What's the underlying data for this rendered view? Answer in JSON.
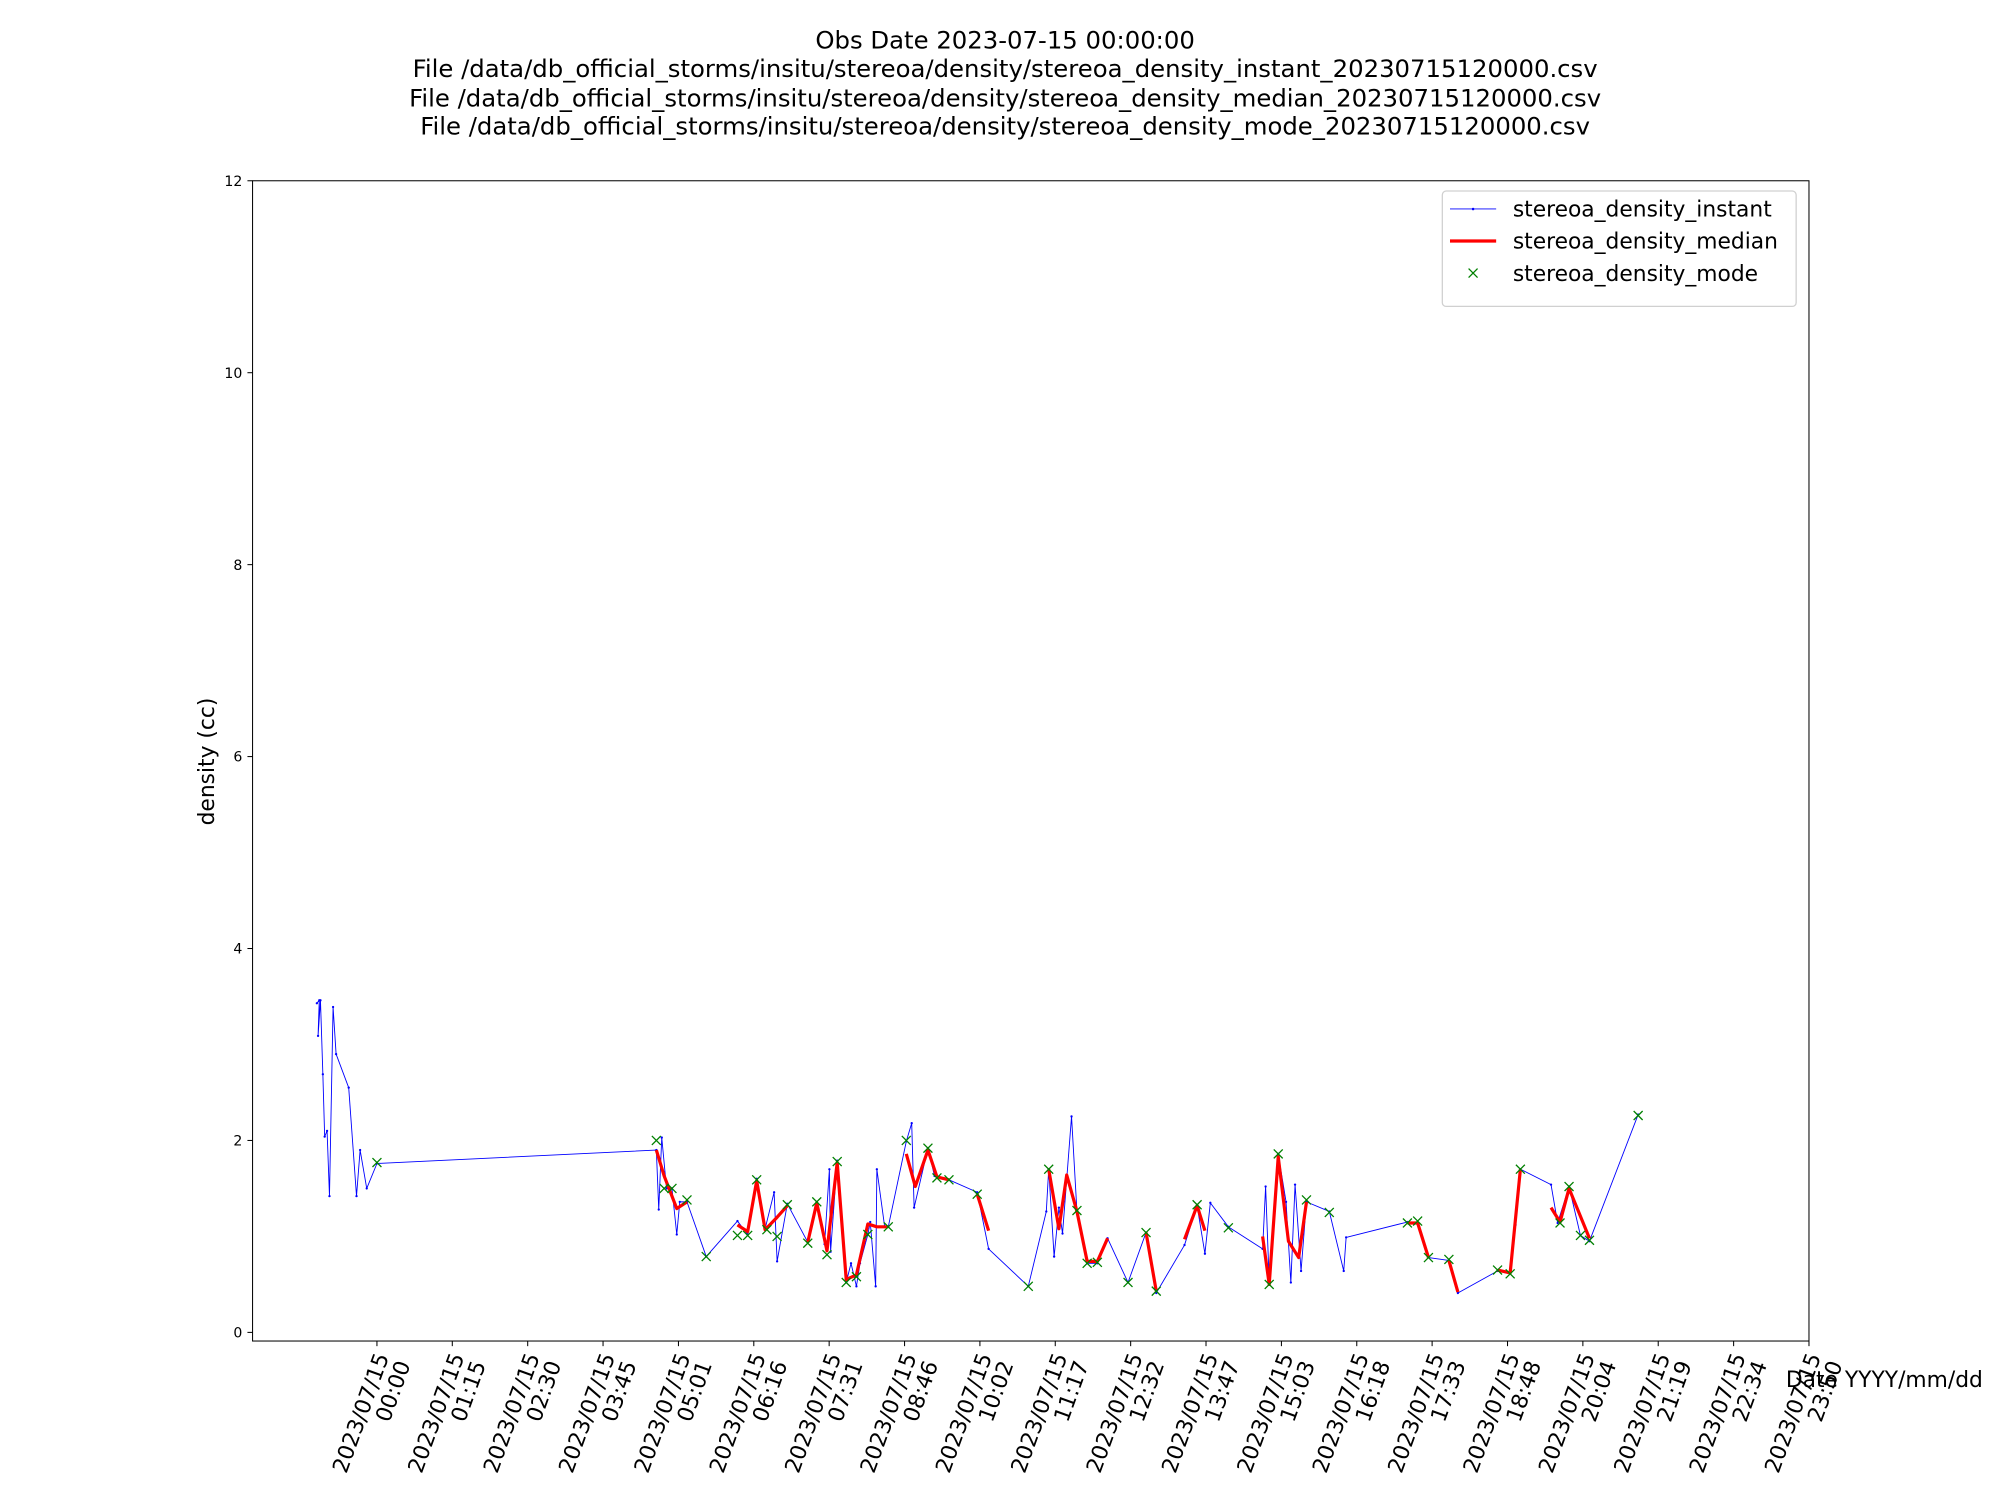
{
  "chart_data": {
    "type": "line",
    "title": [
      "Obs Date 2023-07-15 00:00:00",
      "File /data/db_official_storms/insitu/stereoa/density/stereoa_density_instant_20230715120000.csv",
      "File /data/db_official_storms/insitu/stereoa/density/stereoa_density_median_20230715120000.csv",
      "File /data/db_official_storms/insitu/stereoa/density/stereoa_density_mode_20230715120000.csv"
    ],
    "x_label": "Date YYYY/mm/dd",
    "y_label": "density (cc)",
    "xlim": [
      -2.07,
      23.833
    ],
    "ylim": [
      -0.09,
      12
    ],
    "xticks": [
      {
        "value": 0,
        "label": "2023/07/15\n00:00"
      },
      {
        "value": 1.254,
        "label": "2023/07/15\n01:15"
      },
      {
        "value": 2.509,
        "label": "2023/07/15\n02:30"
      },
      {
        "value": 3.763,
        "label": "2023/07/15\n03:45"
      },
      {
        "value": 5.018,
        "label": "2023/07/15\n05:01"
      },
      {
        "value": 6.272,
        "label": "2023/07/15\n06:16"
      },
      {
        "value": 7.526,
        "label": "2023/07/15\n07:31"
      },
      {
        "value": 8.781,
        "label": "2023/07/15\n08:46"
      },
      {
        "value": 10.035,
        "label": "2023/07/15\n10:02"
      },
      {
        "value": 11.289,
        "label": "2023/07/15\n11:17"
      },
      {
        "value": 12.544,
        "label": "2023/07/15\n12:32"
      },
      {
        "value": 13.798,
        "label": "2023/07/15\n13:47"
      },
      {
        "value": 15.053,
        "label": "2023/07/15\n15:03"
      },
      {
        "value": 16.307,
        "label": "2023/07/15\n16:18"
      },
      {
        "value": 17.561,
        "label": "2023/07/15\n17:33"
      },
      {
        "value": 18.816,
        "label": "2023/07/15\n18:48"
      },
      {
        "value": 20.07,
        "label": "2023/07/15\n20:04"
      },
      {
        "value": 21.324,
        "label": "2023/07/15\n21:19"
      },
      {
        "value": 22.579,
        "label": "2023/07/15\n22:34"
      },
      {
        "value": 23.833,
        "label": "2023/07/15\n23:50"
      }
    ],
    "yticks": [
      0,
      2,
      4,
      6,
      8,
      10,
      12
    ],
    "legend": "upper right",
    "series": [
      {
        "name": "stereoa_density_instant",
        "color": "#0000ff",
        "style": "line",
        "x": [
          -1.0,
          -0.96,
          -0.98,
          -0.94,
          -0.9,
          -0.87,
          -0.83,
          -0.79,
          -0.73,
          -0.68,
          -0.47,
          -0.34,
          -0.28,
          -0.17,
          0,
          4.65,
          4.69,
          4.74,
          4.82,
          4.91,
          4.99,
          5.04,
          5.16,
          5.48,
          6.0,
          6.17,
          6.32,
          6.46,
          6.61,
          6.66,
          6.83,
          7.17,
          7.32,
          7.45,
          7.53,
          7.55,
          7.66,
          7.81,
          7.89,
          7.98,
          8.04,
          8.17,
          8.21,
          8.3,
          8.32,
          8.45,
          8.51,
          8.81,
          8.9,
          8.94,
          9.17,
          9.28,
          9.52,
          9.99,
          10.18,
          10.84,
          11.14,
          11.18,
          11.27,
          11.35,
          11.41,
          11.56,
          11.65,
          11.82,
          11.99,
          12.16,
          12.5,
          12.8,
          12.97,
          13.44,
          13.65,
          13.78,
          13.87,
          14.17,
          14.74,
          14.79,
          14.85,
          15.0,
          15.13,
          15.21,
          15.28,
          15.38,
          15.47,
          15.85,
          16.09,
          16.13,
          17.15,
          17.32,
          17.5,
          17.84,
          17.99,
          18.65,
          18.86,
          18.95,
          19.03,
          19.54,
          19.65,
          19.84,
          20.03,
          20.18,
          20.99
        ],
        "values": [
          3.43,
          3.46,
          3.09,
          3.46,
          2.69,
          2.04,
          2.1,
          1.42,
          3.39,
          2.9,
          2.55,
          1.42,
          1.9,
          1.5,
          1.76,
          1.9,
          1.28,
          2.03,
          1.5,
          1.5,
          1.02,
          1.36,
          1.36,
          0.79,
          1.16,
          1.02,
          1.6,
          1.08,
          1.46,
          0.74,
          1.34,
          0.94,
          1.36,
          0.92,
          1.7,
          0.84,
          1.79,
          0.52,
          0.72,
          0.48,
          0.72,
          1.02,
          1.15,
          0.48,
          1.7,
          1.1,
          1.1,
          1.99,
          2.18,
          1.3,
          1.92,
          1.63,
          1.59,
          1.46,
          0.87,
          0.48,
          1.26,
          1.7,
          0.79,
          1.3,
          1.03,
          2.25,
          1.26,
          0.72,
          0.72,
          0.98,
          0.52,
          1.04,
          0.41,
          0.91,
          1.32,
          0.82,
          1.35,
          1.1,
          0.87,
          1.52,
          0.52,
          1.86,
          1.36,
          0.52,
          1.54,
          0.64,
          1.36,
          1.26,
          0.64,
          0.99,
          1.15,
          1.15,
          0.78,
          0.75,
          0.41,
          0.64,
          0.62,
          1.12,
          1.7,
          1.54,
          1.14,
          1.52,
          1.01,
          0.95,
          2.27
        ]
      },
      {
        "name": "stereoa_density_median",
        "color": "#ff0000",
        "style": "thick",
        "x": [
          4.65,
          4.78,
          4.99,
          5.16,
          null,
          6.0,
          6.17,
          6.32,
          6.46,
          6.66,
          6.83,
          null,
          7.17,
          7.32,
          7.49,
          7.66,
          7.81,
          7.98,
          8.17,
          8.32,
          8.51,
          null,
          8.81,
          8.96,
          9.17,
          9.32,
          9.52,
          null,
          9.99,
          10.18,
          null,
          11.18,
          11.35,
          11.48,
          11.65,
          11.82,
          11.99,
          12.16,
          null,
          12.8,
          12.97,
          null,
          13.44,
          13.65,
          13.78,
          null,
          14.74,
          14.85,
          15.0,
          15.17,
          15.34,
          15.47,
          null,
          17.15,
          17.32,
          17.5,
          null,
          17.84,
          17.99,
          null,
          18.65,
          18.86,
          19.03,
          null,
          19.54,
          19.69,
          19.84,
          20.18
        ],
        "values": [
          1.9,
          1.63,
          1.29,
          1.36,
          null,
          1.12,
          1.05,
          1.58,
          1.07,
          1.2,
          1.32,
          null,
          0.94,
          1.35,
          0.85,
          1.77,
          0.55,
          0.6,
          1.13,
          1.1,
          1.1,
          null,
          1.86,
          1.52,
          1.9,
          1.62,
          1.59,
          null,
          1.44,
          1.06,
          null,
          1.7,
          1.08,
          1.64,
          1.26,
          0.74,
          0.74,
          0.98,
          null,
          1.04,
          0.43,
          null,
          0.97,
          1.32,
          1.06,
          null,
          1.0,
          0.5,
          1.83,
          0.95,
          0.78,
          1.36,
          null,
          1.14,
          1.14,
          0.78,
          null,
          0.75,
          0.42,
          null,
          0.65,
          0.62,
          1.7,
          null,
          1.3,
          1.15,
          1.5,
          0.98
        ]
      },
      {
        "name": "stereoa_density_mode",
        "color": "#008000",
        "style": "x",
        "x": [
          0,
          4.65,
          4.78,
          4.91,
          5.16,
          5.48,
          6.0,
          6.17,
          6.32,
          6.49,
          6.66,
          6.83,
          7.17,
          7.32,
          7.49,
          7.66,
          7.81,
          7.98,
          8.17,
          8.51,
          8.81,
          9.17,
          9.32,
          9.52,
          9.99,
          10.84,
          11.18,
          11.65,
          11.82,
          11.99,
          12.5,
          12.8,
          12.97,
          13.65,
          14.17,
          14.85,
          15.0,
          15.47,
          15.85,
          17.15,
          17.32,
          17.5,
          17.84,
          18.65,
          18.86,
          19.03,
          19.69,
          19.84,
          20.03,
          20.18,
          20.99
        ],
        "values": [
          1.77,
          2.0,
          1.5,
          1.5,
          1.38,
          0.79,
          1.01,
          1.01,
          1.59,
          1.07,
          1.0,
          1.33,
          0.93,
          1.36,
          0.81,
          1.78,
          0.52,
          0.58,
          1.02,
          1.1,
          2.0,
          1.92,
          1.61,
          1.59,
          1.44,
          0.48,
          1.7,
          1.27,
          0.72,
          0.73,
          0.52,
          1.04,
          0.43,
          1.33,
          1.09,
          0.5,
          1.86,
          1.38,
          1.25,
          1.14,
          1.16,
          0.78,
          0.76,
          0.65,
          0.61,
          1.7,
          1.14,
          1.52,
          1.01,
          0.96,
          2.26
        ]
      }
    ]
  }
}
